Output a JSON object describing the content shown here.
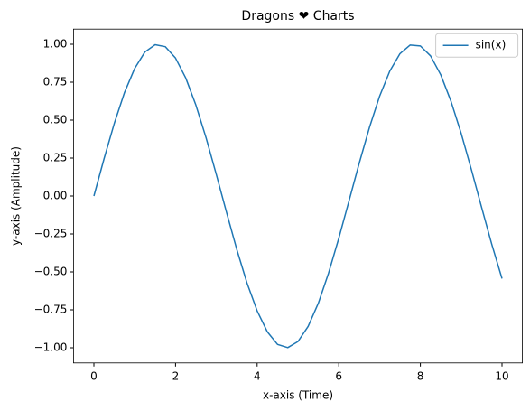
{
  "chart_data": {
    "type": "line",
    "title": "Dragons ❤ Charts",
    "x_label": "x-axis (Time)",
    "y_label": "y-axis (Amplitude)",
    "x": [
      0,
      0.25,
      0.5,
      0.75,
      1,
      1.25,
      1.5,
      1.75,
      2,
      2.25,
      2.5,
      2.75,
      3,
      3.25,
      3.5,
      3.75,
      4,
      4.25,
      4.5,
      4.75,
      5,
      5.25,
      5.5,
      5.75,
      6,
      6.25,
      6.5,
      6.75,
      7,
      7.25,
      7.5,
      7.75,
      8,
      8.25,
      8.5,
      8.75,
      9,
      9.25,
      9.5,
      9.75,
      10
    ],
    "series": [
      {
        "name": "sin(x)",
        "color": "#1f77b4",
        "values": [
          0,
          0.247,
          0.479,
          0.682,
          0.841,
          0.949,
          0.997,
          0.984,
          0.909,
          0.778,
          0.598,
          0.382,
          0.141,
          -0.108,
          -0.351,
          -0.572,
          -0.757,
          -0.895,
          -0.978,
          -0.999,
          -0.959,
          -0.859,
          -0.706,
          -0.508,
          -0.279,
          -0.033,
          0.215,
          0.45,
          0.657,
          0.823,
          0.938,
          0.995,
          0.989,
          0.923,
          0.798,
          0.624,
          0.412,
          0.174,
          -0.075,
          -0.319,
          -0.544
        ]
      }
    ],
    "xlim": [
      -0.5,
      10.5
    ],
    "ylim": [
      -1.1,
      1.1
    ],
    "xticks": [
      0,
      2,
      4,
      6,
      8,
      10
    ],
    "yticks": [
      {
        "value": -1,
        "label": "−1.00"
      },
      {
        "value": -0.75,
        "label": "−0.75"
      },
      {
        "value": -0.5,
        "label": "−0.50"
      },
      {
        "value": -0.25,
        "label": "−0.25"
      },
      {
        "value": 0,
        "label": "0.00"
      },
      {
        "value": 0.25,
        "label": "0.25"
      },
      {
        "value": 0.5,
        "label": "0.50"
      },
      {
        "value": 0.75,
        "label": "0.75"
      },
      {
        "value": 1,
        "label": "1.00"
      }
    ],
    "legend": "upper right"
  }
}
